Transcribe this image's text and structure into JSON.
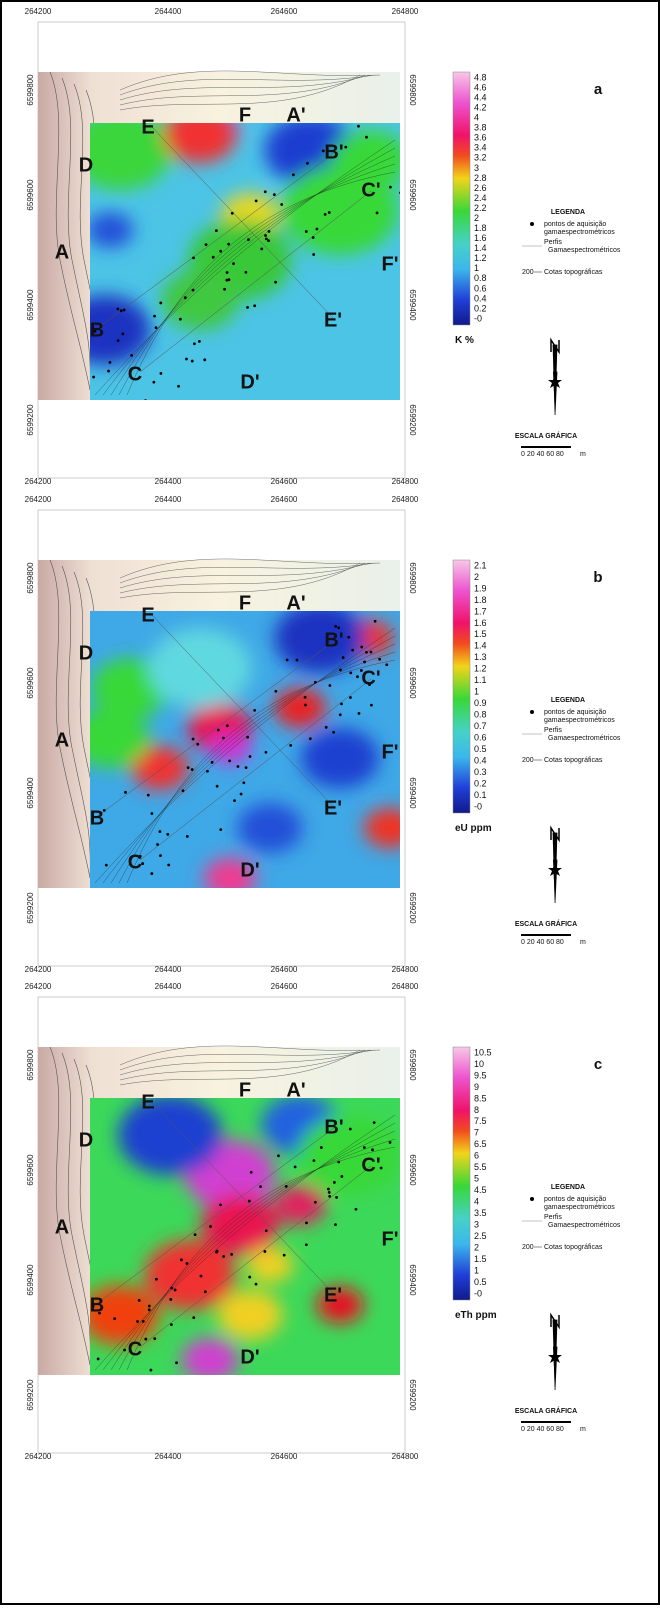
{
  "panels": [
    {
      "label": "a",
      "x_ticks_top": [
        "264200",
        "264400",
        "264600",
        "264800"
      ],
      "x_ticks_bottom": [
        "264200",
        "264400",
        "264600",
        "264800"
      ],
      "y_ticks_left": [
        "6599800",
        "6599600",
        "6599400",
        "6599200"
      ],
      "y_ticks_right": [
        "6599800",
        "6599600",
        "6599400",
        "6599200"
      ],
      "profile_labels": [
        "E",
        "F",
        "A'",
        "D",
        "B'",
        "C'",
        "A",
        "F'",
        "E'",
        "B",
        "C",
        "D'"
      ],
      "colorbar": {
        "ticks": [
          "4.8",
          "4.6",
          "4.4",
          "4.2",
          "4",
          "3.8",
          "3.6",
          "3.4",
          "3.2",
          "3",
          "2.8",
          "2.6",
          "2.4",
          "2.2",
          "2",
          "1.8",
          "1.6",
          "1.4",
          "1.2",
          "1",
          "0.8",
          "0.6",
          "0.4",
          "0.2",
          "-0"
        ],
        "unit": "K %"
      },
      "legend": {
        "title": "LEGENDA",
        "items": [
          [
            "pontos de aquisição",
            "gamaespectrométricos"
          ],
          [
            "Perfis",
            "Gamaespectrométricos"
          ],
          [
            "Cotas topográficas"
          ]
        ],
        "contour_value": "200"
      },
      "scale": {
        "title": "ESCALA GRÁFICA",
        "ticks": "0  20  40  60  80",
        "unit": "m"
      }
    },
    {
      "label": "b",
      "x_ticks_top": [
        "264200",
        "264400",
        "264600",
        "264800"
      ],
      "x_ticks_bottom": [
        "264200",
        "264400",
        "264600",
        "264800"
      ],
      "y_ticks_left": [
        "6599800",
        "6599600",
        "6599400",
        "6599200"
      ],
      "y_ticks_right": [
        "6599800",
        "6599600",
        "6599400",
        "6599200"
      ],
      "profile_labels": [
        "E",
        "F",
        "A'",
        "D",
        "B'",
        "C'",
        "A",
        "F'",
        "E'",
        "B",
        "C",
        "D'"
      ],
      "colorbar": {
        "ticks": [
          "2.1",
          "2",
          "1.9",
          "1.8",
          "1.7",
          "1.6",
          "1.5",
          "1.4",
          "1.3",
          "1.2",
          "1.1",
          "1",
          "0.9",
          "0.8",
          "0.7",
          "0.6",
          "0.5",
          "0.4",
          "0.3",
          "0.2",
          "0.1",
          "-0"
        ],
        "unit": "eU  ppm"
      },
      "legend": {
        "title": "LEGENDA",
        "items": [
          [
            "pontos de aquisição",
            "gamaespectrométricos"
          ],
          [
            "Perfis",
            "Gamaespectrométricos"
          ],
          [
            "Cotas topográficas"
          ]
        ],
        "contour_value": "200"
      },
      "scale": {
        "title": "ESCALA GRÁFICA",
        "ticks": "0  20  40  60  80",
        "unit": "m"
      }
    },
    {
      "label": "c",
      "x_ticks_top": [
        "264200",
        "264400",
        "264600",
        "264800"
      ],
      "x_ticks_bottom": [
        "264200",
        "264400",
        "264600",
        "264800"
      ],
      "y_ticks_left": [
        "6599800",
        "6599600",
        "6599400",
        "6599200"
      ],
      "y_ticks_right": [
        "6599800",
        "6599600",
        "6599400",
        "6599200"
      ],
      "profile_labels": [
        "E",
        "F",
        "A'",
        "D",
        "B'",
        "C'",
        "A",
        "F'",
        "E'",
        "B",
        "C",
        "D'"
      ],
      "colorbar": {
        "ticks": [
          "10.5",
          "10",
          "9.5",
          "9",
          "8.5",
          "8",
          "7.5",
          "7",
          "6.5",
          "6",
          "5.5",
          "5",
          "4.5",
          "4",
          "3.5",
          "3",
          "2.5",
          "2",
          "1.5",
          "1",
          "0.5",
          "-0"
        ],
        "unit": "eTh  ppm"
      },
      "legend": {
        "title": "LEGENDA",
        "items": [
          [
            "pontos de aquisição",
            "gamaespectrométricos"
          ],
          [
            "Perfis",
            "Gamaespectrométricos"
          ],
          [
            "Cotas topográficas"
          ]
        ],
        "contour_value": "200"
      },
      "scale": {
        "title": "ESCALA GRÁFICA",
        "ticks": "0  20  40  60  80",
        "unit": "m"
      }
    }
  ]
}
